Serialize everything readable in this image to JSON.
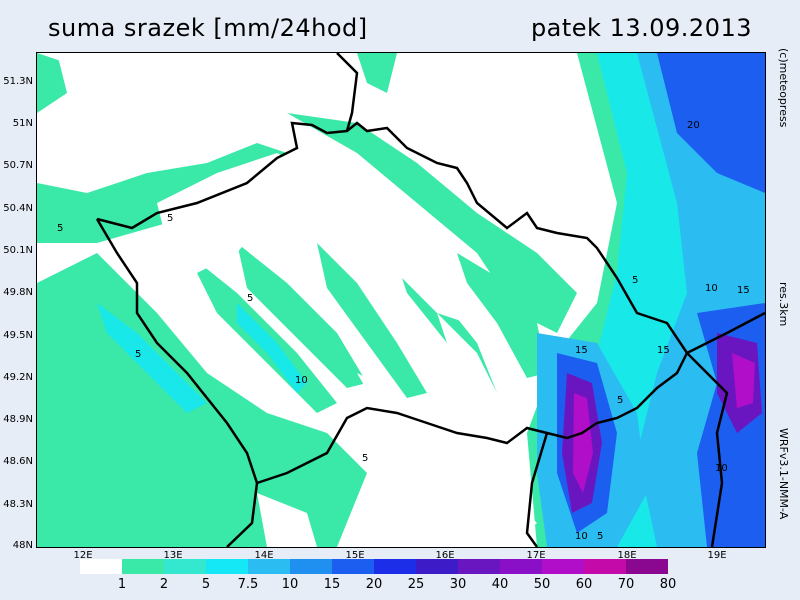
{
  "title": {
    "left": "suma srazek [mm/24hod]",
    "right": "patek 13.09.2013"
  },
  "side_labels": {
    "copyright": "(c)meteopress",
    "resolution": "res.3km",
    "model": "WRFv3.1-NMM-A"
  },
  "lat_labels": [
    "51.3N",
    "51N",
    "50.7N",
    "50.4N",
    "50.1N",
    "49.8N",
    "49.5N",
    "49.2N",
    "48.9N",
    "48.6N",
    "48.3N",
    "48N"
  ],
  "lon_labels": [
    "12E",
    "13E",
    "14E",
    "15E",
    "16E",
    "17E",
    "18E",
    "19E"
  ],
  "legend": {
    "labels": [
      "1",
      "2",
      "5",
      "7.5",
      "10",
      "15",
      "20",
      "25",
      "30",
      "40",
      "50",
      "60",
      "70",
      "80"
    ],
    "colors": [
      "#ffffff",
      "#3ae8a8",
      "#33e8cf",
      "#14e7f5",
      "#2bbcf2",
      "#1f8ff0",
      "#1c5ff0",
      "#1c2ee8",
      "#3d1cc8",
      "#6a16c0",
      "#8a10c8",
      "#b00ec8",
      "#c40aa8",
      "#8a0890"
    ]
  },
  "map": {
    "contour_labels": [
      "5",
      "5",
      "5",
      "5",
      "5",
      "5",
      "10",
      "10",
      "10",
      "15",
      "15",
      "15",
      "20",
      "5",
      "10",
      "5"
    ]
  }
}
